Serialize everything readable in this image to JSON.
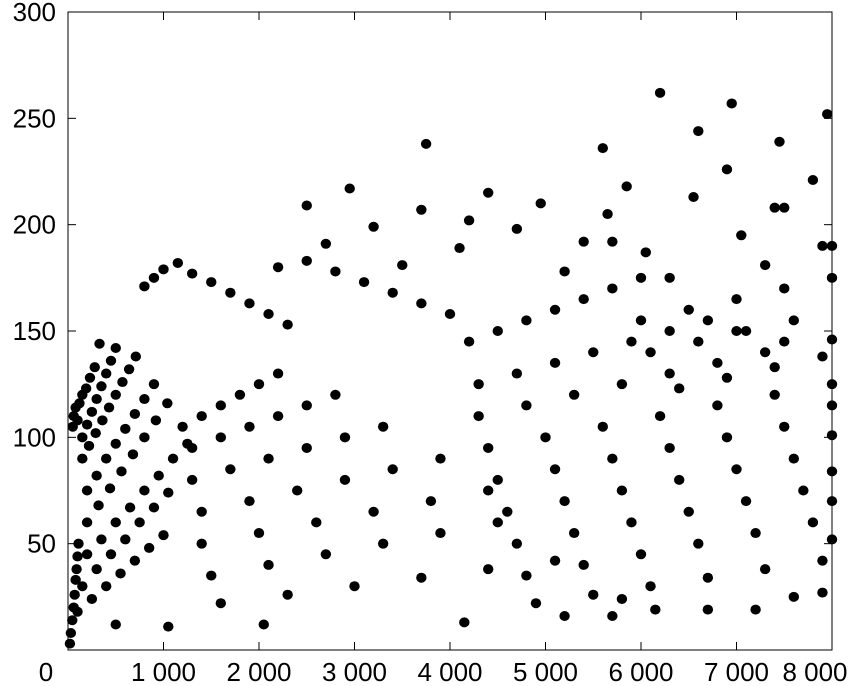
{
  "chart_data": {
    "type": "scatter",
    "title": "",
    "xlabel": "",
    "ylabel": "",
    "xlim": [
      0,
      8000
    ],
    "ylim": [
      0,
      300
    ],
    "grid": false,
    "legend": "none",
    "x_ticks": [
      0,
      1000,
      2000,
      3000,
      4000,
      5000,
      6000,
      7000,
      8000
    ],
    "x_tick_labels": [
      "0",
      "1 000",
      "2 000",
      "3 000",
      "4 000",
      "5 000",
      "6 000",
      "7 000",
      "8 000"
    ],
    "y_ticks": [
      50,
      100,
      150,
      200,
      250,
      300
    ],
    "y_tick_labels": [
      "50",
      "100",
      "150",
      "200",
      "250",
      "300"
    ],
    "marker_color": "#000000",
    "series": [
      {
        "points": [
          [
            20,
            3
          ],
          [
            30,
            8
          ],
          [
            45,
            14
          ],
          [
            60,
            20
          ],
          [
            70,
            26
          ],
          [
            80,
            33
          ],
          [
            90,
            38
          ],
          [
            100,
            44
          ],
          [
            110,
            50
          ],
          [
            50,
            105
          ],
          [
            60,
            110
          ],
          [
            80,
            114
          ],
          [
            100,
            108
          ],
          [
            120,
            116
          ],
          [
            150,
            120
          ],
          [
            190,
            123
          ],
          [
            230,
            128
          ],
          [
            280,
            133
          ],
          [
            330,
            144
          ],
          [
            150,
            100
          ],
          [
            200,
            106
          ],
          [
            250,
            112
          ],
          [
            300,
            118
          ],
          [
            350,
            124
          ],
          [
            400,
            130
          ],
          [
            450,
            136
          ],
          [
            500,
            142
          ],
          [
            150,
            90
          ],
          [
            220,
            96
          ],
          [
            290,
            102
          ],
          [
            360,
            108
          ],
          [
            430,
            114
          ],
          [
            500,
            120
          ],
          [
            570,
            126
          ],
          [
            640,
            132
          ],
          [
            710,
            138
          ],
          [
            200,
            75
          ],
          [
            300,
            82
          ],
          [
            400,
            90
          ],
          [
            500,
            97
          ],
          [
            600,
            104
          ],
          [
            700,
            111
          ],
          [
            800,
            118
          ],
          [
            900,
            125
          ],
          [
            200,
            60
          ],
          [
            320,
            68
          ],
          [
            440,
            76
          ],
          [
            560,
            84
          ],
          [
            680,
            92
          ],
          [
            800,
            100
          ],
          [
            920,
            108
          ],
          [
            1040,
            116
          ],
          [
            200,
            45
          ],
          [
            350,
            52
          ],
          [
            500,
            60
          ],
          [
            650,
            67
          ],
          [
            800,
            75
          ],
          [
            950,
            82
          ],
          [
            1100,
            90
          ],
          [
            1250,
            97
          ],
          [
            150,
            30
          ],
          [
            300,
            38
          ],
          [
            450,
            45
          ],
          [
            600,
            52
          ],
          [
            750,
            60
          ],
          [
            900,
            67
          ],
          [
            1050,
            74
          ],
          [
            100,
            18
          ],
          [
            250,
            24
          ],
          [
            400,
            30
          ],
          [
            550,
            36
          ],
          [
            700,
            42
          ],
          [
            850,
            48
          ],
          [
            1000,
            54
          ],
          [
            500,
            12
          ],
          [
            1050,
            11
          ],
          [
            2050,
            12
          ],
          [
            4150,
            13
          ],
          [
            5200,
            16
          ],
          [
            5700,
            16
          ],
          [
            800,
            171
          ],
          [
            900,
            175
          ],
          [
            1000,
            179
          ],
          [
            1150,
            182
          ],
          [
            1300,
            177
          ],
          [
            1500,
            173
          ],
          [
            1700,
            168
          ],
          [
            1900,
            163
          ],
          [
            2100,
            158
          ],
          [
            2300,
            153
          ],
          [
            1200,
            105
          ],
          [
            1400,
            110
          ],
          [
            1600,
            115
          ],
          [
            1800,
            120
          ],
          [
            2000,
            125
          ],
          [
            2200,
            130
          ],
          [
            1300,
            95
          ],
          [
            1600,
            100
          ],
          [
            1900,
            105
          ],
          [
            2200,
            110
          ],
          [
            2500,
            115
          ],
          [
            2800,
            120
          ],
          [
            1300,
            80
          ],
          [
            1700,
            85
          ],
          [
            2100,
            90
          ],
          [
            2500,
            95
          ],
          [
            2900,
            100
          ],
          [
            3300,
            105
          ],
          [
            1400,
            65
          ],
          [
            1900,
            70
          ],
          [
            2400,
            75
          ],
          [
            2900,
            80
          ],
          [
            3400,
            85
          ],
          [
            3900,
            90
          ],
          [
            1400,
            50
          ],
          [
            2000,
            55
          ],
          [
            2600,
            60
          ],
          [
            3200,
            65
          ],
          [
            3800,
            70
          ],
          [
            4400,
            75
          ],
          [
            1500,
            35
          ],
          [
            2100,
            40
          ],
          [
            2700,
            45
          ],
          [
            3300,
            50
          ],
          [
            3900,
            55
          ],
          [
            4500,
            60
          ],
          [
            1600,
            22
          ],
          [
            2300,
            26
          ],
          [
            3000,
            30
          ],
          [
            3700,
            34
          ],
          [
            4400,
            38
          ],
          [
            5100,
            42
          ],
          [
            2200,
            180
          ],
          [
            2500,
            183
          ],
          [
            2800,
            178
          ],
          [
            3100,
            173
          ],
          [
            3400,
            168
          ],
          [
            3700,
            163
          ],
          [
            4000,
            158
          ],
          [
            2500,
            209
          ],
          [
            2700,
            191
          ],
          [
            2950,
            217
          ],
          [
            3200,
            199
          ],
          [
            3500,
            181
          ],
          [
            3700,
            207
          ],
          [
            3750,
            238
          ],
          [
            4100,
            189
          ],
          [
            4200,
            202
          ],
          [
            4400,
            215
          ],
          [
            4700,
            198
          ],
          [
            4950,
            210
          ],
          [
            5200,
            178
          ],
          [
            5400,
            192
          ],
          [
            5600,
            236
          ],
          [
            5650,
            205
          ],
          [
            5700,
            192
          ],
          [
            5850,
            218
          ],
          [
            6050,
            187
          ],
          [
            6200,
            262
          ],
          [
            6300,
            175
          ],
          [
            6550,
            213
          ],
          [
            6600,
            244
          ],
          [
            6950,
            257
          ],
          [
            6900,
            226
          ],
          [
            7050,
            195
          ],
          [
            7300,
            181
          ],
          [
            7450,
            239
          ],
          [
            7400,
            208
          ],
          [
            7500,
            208
          ],
          [
            7800,
            221
          ],
          [
            7950,
            252
          ],
          [
            7900,
            190
          ],
          [
            8000,
            190
          ],
          [
            4200,
            145
          ],
          [
            4500,
            150
          ],
          [
            4800,
            155
          ],
          [
            5100,
            160
          ],
          [
            5400,
            165
          ],
          [
            5700,
            170
          ],
          [
            6000,
            175
          ],
          [
            4300,
            125
          ],
          [
            4700,
            130
          ],
          [
            5100,
            135
          ],
          [
            5500,
            140
          ],
          [
            5900,
            145
          ],
          [
            6300,
            150
          ],
          [
            6700,
            155
          ],
          [
            4300,
            110
          ],
          [
            4800,
            115
          ],
          [
            5300,
            120
          ],
          [
            5800,
            125
          ],
          [
            6300,
            130
          ],
          [
            6800,
            135
          ],
          [
            7300,
            140
          ],
          [
            4400,
            95
          ],
          [
            5000,
            100
          ],
          [
            5600,
            105
          ],
          [
            6200,
            110
          ],
          [
            6800,
            115
          ],
          [
            7400,
            120
          ],
          [
            8000,
            125
          ],
          [
            4500,
            80
          ],
          [
            5100,
            85
          ],
          [
            5700,
            90
          ],
          [
            6300,
            95
          ],
          [
            6900,
            100
          ],
          [
            7500,
            105
          ],
          [
            4600,
            65
          ],
          [
            5200,
            70
          ],
          [
            5800,
            75
          ],
          [
            6400,
            80
          ],
          [
            7000,
            85
          ],
          [
            7600,
            90
          ],
          [
            4700,
            50
          ],
          [
            5300,
            55
          ],
          [
            5900,
            60
          ],
          [
            6500,
            65
          ],
          [
            7100,
            70
          ],
          [
            7700,
            75
          ],
          [
            4800,
            35
          ],
          [
            5400,
            40
          ],
          [
            6000,
            45
          ],
          [
            6600,
            50
          ],
          [
            7200,
            55
          ],
          [
            7800,
            60
          ],
          [
            4900,
            22
          ],
          [
            5500,
            26
          ],
          [
            6100,
            30
          ],
          [
            6700,
            34
          ],
          [
            7300,
            38
          ],
          [
            7900,
            42
          ],
          [
            5800,
            24
          ],
          [
            6150,
            19
          ],
          [
            6700,
            19
          ],
          [
            7200,
            19
          ],
          [
            7600,
            25
          ],
          [
            7900,
            27
          ],
          [
            6000,
            155
          ],
          [
            6500,
            160
          ],
          [
            7000,
            165
          ],
          [
            7500,
            170
          ],
          [
            8000,
            175
          ],
          [
            6100,
            140
          ],
          [
            6600,
            145
          ],
          [
            7100,
            150
          ],
          [
            7600,
            155
          ],
          [
            6400,
            123
          ],
          [
            6900,
            128
          ],
          [
            7400,
            133
          ],
          [
            7900,
            138
          ],
          [
            7000,
            150
          ],
          [
            7500,
            145
          ],
          [
            8000,
            146
          ],
          [
            8000,
            115
          ],
          [
            8000,
            101
          ],
          [
            8000,
            84
          ],
          [
            8000,
            70
          ],
          [
            8000,
            52
          ]
        ]
      }
    ]
  }
}
